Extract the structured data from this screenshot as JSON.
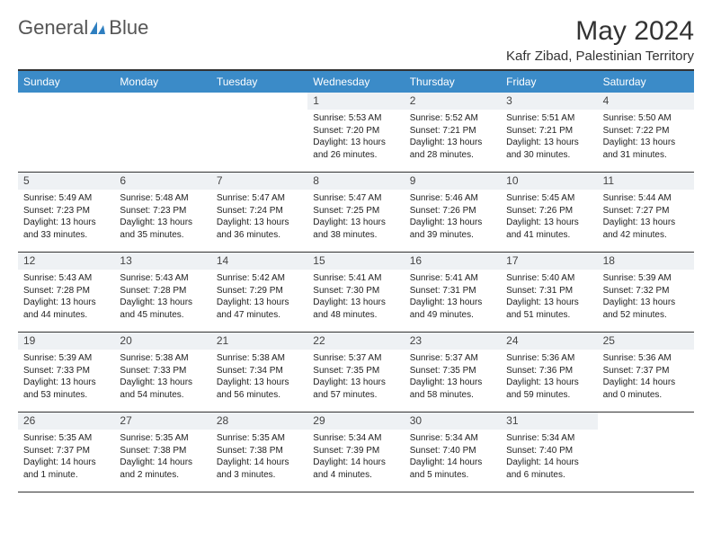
{
  "logo": {
    "text1": "General",
    "text2": "Blue"
  },
  "colors": {
    "header_bar": "#3b8bc8",
    "daynum_bg": "#eef1f4",
    "text": "#222222",
    "accent": "#2f7fc0"
  },
  "title": "May 2024",
  "subtitle": "Kafr Zibad, Palestinian Territory",
  "weekdays": [
    "Sunday",
    "Monday",
    "Tuesday",
    "Wednesday",
    "Thursday",
    "Friday",
    "Saturday"
  ],
  "weeks": [
    [
      {
        "n": "",
        "sr": "",
        "ss": "",
        "dl": ""
      },
      {
        "n": "",
        "sr": "",
        "ss": "",
        "dl": ""
      },
      {
        "n": "",
        "sr": "",
        "ss": "",
        "dl": ""
      },
      {
        "n": "1",
        "sr": "Sunrise: 5:53 AM",
        "ss": "Sunset: 7:20 PM",
        "dl": "Daylight: 13 hours and 26 minutes."
      },
      {
        "n": "2",
        "sr": "Sunrise: 5:52 AM",
        "ss": "Sunset: 7:21 PM",
        "dl": "Daylight: 13 hours and 28 minutes."
      },
      {
        "n": "3",
        "sr": "Sunrise: 5:51 AM",
        "ss": "Sunset: 7:21 PM",
        "dl": "Daylight: 13 hours and 30 minutes."
      },
      {
        "n": "4",
        "sr": "Sunrise: 5:50 AM",
        "ss": "Sunset: 7:22 PM",
        "dl": "Daylight: 13 hours and 31 minutes."
      }
    ],
    [
      {
        "n": "5",
        "sr": "Sunrise: 5:49 AM",
        "ss": "Sunset: 7:23 PM",
        "dl": "Daylight: 13 hours and 33 minutes."
      },
      {
        "n": "6",
        "sr": "Sunrise: 5:48 AM",
        "ss": "Sunset: 7:23 PM",
        "dl": "Daylight: 13 hours and 35 minutes."
      },
      {
        "n": "7",
        "sr": "Sunrise: 5:47 AM",
        "ss": "Sunset: 7:24 PM",
        "dl": "Daylight: 13 hours and 36 minutes."
      },
      {
        "n": "8",
        "sr": "Sunrise: 5:47 AM",
        "ss": "Sunset: 7:25 PM",
        "dl": "Daylight: 13 hours and 38 minutes."
      },
      {
        "n": "9",
        "sr": "Sunrise: 5:46 AM",
        "ss": "Sunset: 7:26 PM",
        "dl": "Daylight: 13 hours and 39 minutes."
      },
      {
        "n": "10",
        "sr": "Sunrise: 5:45 AM",
        "ss": "Sunset: 7:26 PM",
        "dl": "Daylight: 13 hours and 41 minutes."
      },
      {
        "n": "11",
        "sr": "Sunrise: 5:44 AM",
        "ss": "Sunset: 7:27 PM",
        "dl": "Daylight: 13 hours and 42 minutes."
      }
    ],
    [
      {
        "n": "12",
        "sr": "Sunrise: 5:43 AM",
        "ss": "Sunset: 7:28 PM",
        "dl": "Daylight: 13 hours and 44 minutes."
      },
      {
        "n": "13",
        "sr": "Sunrise: 5:43 AM",
        "ss": "Sunset: 7:28 PM",
        "dl": "Daylight: 13 hours and 45 minutes."
      },
      {
        "n": "14",
        "sr": "Sunrise: 5:42 AM",
        "ss": "Sunset: 7:29 PM",
        "dl": "Daylight: 13 hours and 47 minutes."
      },
      {
        "n": "15",
        "sr": "Sunrise: 5:41 AM",
        "ss": "Sunset: 7:30 PM",
        "dl": "Daylight: 13 hours and 48 minutes."
      },
      {
        "n": "16",
        "sr": "Sunrise: 5:41 AM",
        "ss": "Sunset: 7:31 PM",
        "dl": "Daylight: 13 hours and 49 minutes."
      },
      {
        "n": "17",
        "sr": "Sunrise: 5:40 AM",
        "ss": "Sunset: 7:31 PM",
        "dl": "Daylight: 13 hours and 51 minutes."
      },
      {
        "n": "18",
        "sr": "Sunrise: 5:39 AM",
        "ss": "Sunset: 7:32 PM",
        "dl": "Daylight: 13 hours and 52 minutes."
      }
    ],
    [
      {
        "n": "19",
        "sr": "Sunrise: 5:39 AM",
        "ss": "Sunset: 7:33 PM",
        "dl": "Daylight: 13 hours and 53 minutes."
      },
      {
        "n": "20",
        "sr": "Sunrise: 5:38 AM",
        "ss": "Sunset: 7:33 PM",
        "dl": "Daylight: 13 hours and 54 minutes."
      },
      {
        "n": "21",
        "sr": "Sunrise: 5:38 AM",
        "ss": "Sunset: 7:34 PM",
        "dl": "Daylight: 13 hours and 56 minutes."
      },
      {
        "n": "22",
        "sr": "Sunrise: 5:37 AM",
        "ss": "Sunset: 7:35 PM",
        "dl": "Daylight: 13 hours and 57 minutes."
      },
      {
        "n": "23",
        "sr": "Sunrise: 5:37 AM",
        "ss": "Sunset: 7:35 PM",
        "dl": "Daylight: 13 hours and 58 minutes."
      },
      {
        "n": "24",
        "sr": "Sunrise: 5:36 AM",
        "ss": "Sunset: 7:36 PM",
        "dl": "Daylight: 13 hours and 59 minutes."
      },
      {
        "n": "25",
        "sr": "Sunrise: 5:36 AM",
        "ss": "Sunset: 7:37 PM",
        "dl": "Daylight: 14 hours and 0 minutes."
      }
    ],
    [
      {
        "n": "26",
        "sr": "Sunrise: 5:35 AM",
        "ss": "Sunset: 7:37 PM",
        "dl": "Daylight: 14 hours and 1 minute."
      },
      {
        "n": "27",
        "sr": "Sunrise: 5:35 AM",
        "ss": "Sunset: 7:38 PM",
        "dl": "Daylight: 14 hours and 2 minutes."
      },
      {
        "n": "28",
        "sr": "Sunrise: 5:35 AM",
        "ss": "Sunset: 7:38 PM",
        "dl": "Daylight: 14 hours and 3 minutes."
      },
      {
        "n": "29",
        "sr": "Sunrise: 5:34 AM",
        "ss": "Sunset: 7:39 PM",
        "dl": "Daylight: 14 hours and 4 minutes."
      },
      {
        "n": "30",
        "sr": "Sunrise: 5:34 AM",
        "ss": "Sunset: 7:40 PM",
        "dl": "Daylight: 14 hours and 5 minutes."
      },
      {
        "n": "31",
        "sr": "Sunrise: 5:34 AM",
        "ss": "Sunset: 7:40 PM",
        "dl": "Daylight: 14 hours and 6 minutes."
      },
      {
        "n": "",
        "sr": "",
        "ss": "",
        "dl": ""
      }
    ]
  ]
}
